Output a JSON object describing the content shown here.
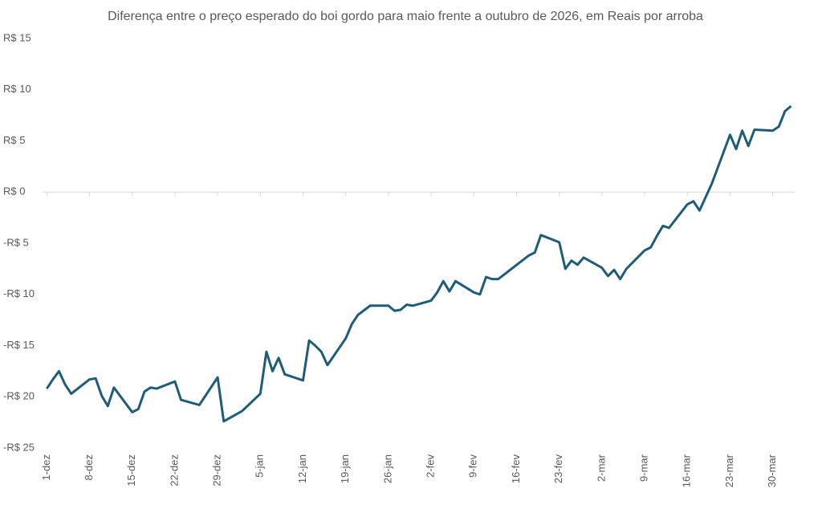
{
  "chart_data": {
    "type": "line",
    "title": "Diferença entre o preço esperado do boi gordo para maio frente a outubro de 2026, em Reais por arroba",
    "x": [
      0,
      1,
      2,
      3,
      4,
      7,
      8,
      9,
      10,
      11,
      14,
      15,
      16,
      17,
      18,
      21,
      22,
      25,
      28,
      29,
      32,
      35,
      36,
      37,
      38,
      39,
      42,
      43,
      44,
      45,
      46,
      49,
      50,
      51,
      53,
      56,
      57,
      58,
      59,
      60,
      63,
      64,
      65,
      66,
      67,
      70,
      71,
      72,
      73,
      74,
      79,
      80,
      81,
      84,
      85,
      86,
      87,
      88,
      91,
      92,
      93,
      94,
      95,
      98,
      99,
      100,
      101,
      102,
      105,
      106,
      107,
      109,
      112,
      113,
      114,
      115,
      116,
      119,
      120,
      121,
      122
    ],
    "series": [
      {
        "name": "Diferença",
        "color": "#1f5c78",
        "values": [
          -19.2,
          -18.3,
          -17.5,
          -18.8,
          -19.7,
          -18.3,
          -18.2,
          -19.9,
          -20.9,
          -19.1,
          -21.5,
          -21.2,
          -19.5,
          -19.1,
          -19.2,
          -18.5,
          -20.3,
          -20.8,
          -18.1,
          -22.4,
          -21.4,
          -19.7,
          -15.6,
          -17.5,
          -16.2,
          -17.8,
          -18.4,
          -14.5,
          -15.0,
          -15.6,
          -16.9,
          -14.3,
          -12.9,
          -12.0,
          -11.1,
          -11.1,
          -11.6,
          -11.5,
          -11.0,
          -11.1,
          -10.6,
          -9.8,
          -8.7,
          -9.7,
          -8.7,
          -9.8,
          -10.0,
          -8.3,
          -8.5,
          -8.5,
          -6.2,
          -5.9,
          -4.2,
          -4.9,
          -7.5,
          -6.7,
          -7.1,
          -6.4,
          -7.4,
          -8.2,
          -7.6,
          -8.5,
          -7.5,
          -5.7,
          -5.4,
          -4.3,
          -3.3,
          -3.5,
          -1.2,
          -0.9,
          -1.8,
          0.8,
          5.6,
          4.2,
          6.0,
          4.5,
          6.1,
          6.0,
          6.4,
          7.9,
          8.4
        ]
      }
    ],
    "xlim": [
      -0.7,
      122.6
    ],
    "xticks": [
      {
        "value": 0,
        "label": "1-dez"
      },
      {
        "value": 7,
        "label": "8-dez"
      },
      {
        "value": 14,
        "label": "15-dez"
      },
      {
        "value": 21,
        "label": "22-dez"
      },
      {
        "value": 28,
        "label": "29-dez"
      },
      {
        "value": 35,
        "label": "5-jan"
      },
      {
        "value": 42,
        "label": "12-jan"
      },
      {
        "value": 49,
        "label": "19-jan"
      },
      {
        "value": 56,
        "label": "26-jan"
      },
      {
        "value": 63,
        "label": "2-fev"
      },
      {
        "value": 70,
        "label": "9-fev"
      },
      {
        "value": 77,
        "label": "16-fev"
      },
      {
        "value": 84,
        "label": "23-fev"
      },
      {
        "value": 91,
        "label": "2-mar"
      },
      {
        "value": 98,
        "label": "9-mar"
      },
      {
        "value": 105,
        "label": "16-mar"
      },
      {
        "value": 112,
        "label": "23-mar"
      },
      {
        "value": 119,
        "label": "30-mar"
      }
    ],
    "ylim": [
      -25,
      15
    ],
    "yticks": [
      {
        "value": -25,
        "label": "-R$ 25"
      },
      {
        "value": -20,
        "label": "-R$ 20"
      },
      {
        "value": -15,
        "label": "-R$ 15"
      },
      {
        "value": -10,
        "label": "-R$ 10"
      },
      {
        "value": -5,
        "label": "-R$ 5"
      },
      {
        "value": 0,
        "label": "R$ 0"
      },
      {
        "value": 5,
        "label": "R$ 5"
      },
      {
        "value": 10,
        "label": "R$ 10"
      },
      {
        "value": 15,
        "label": "R$ 15"
      }
    ],
    "grid": false
  }
}
